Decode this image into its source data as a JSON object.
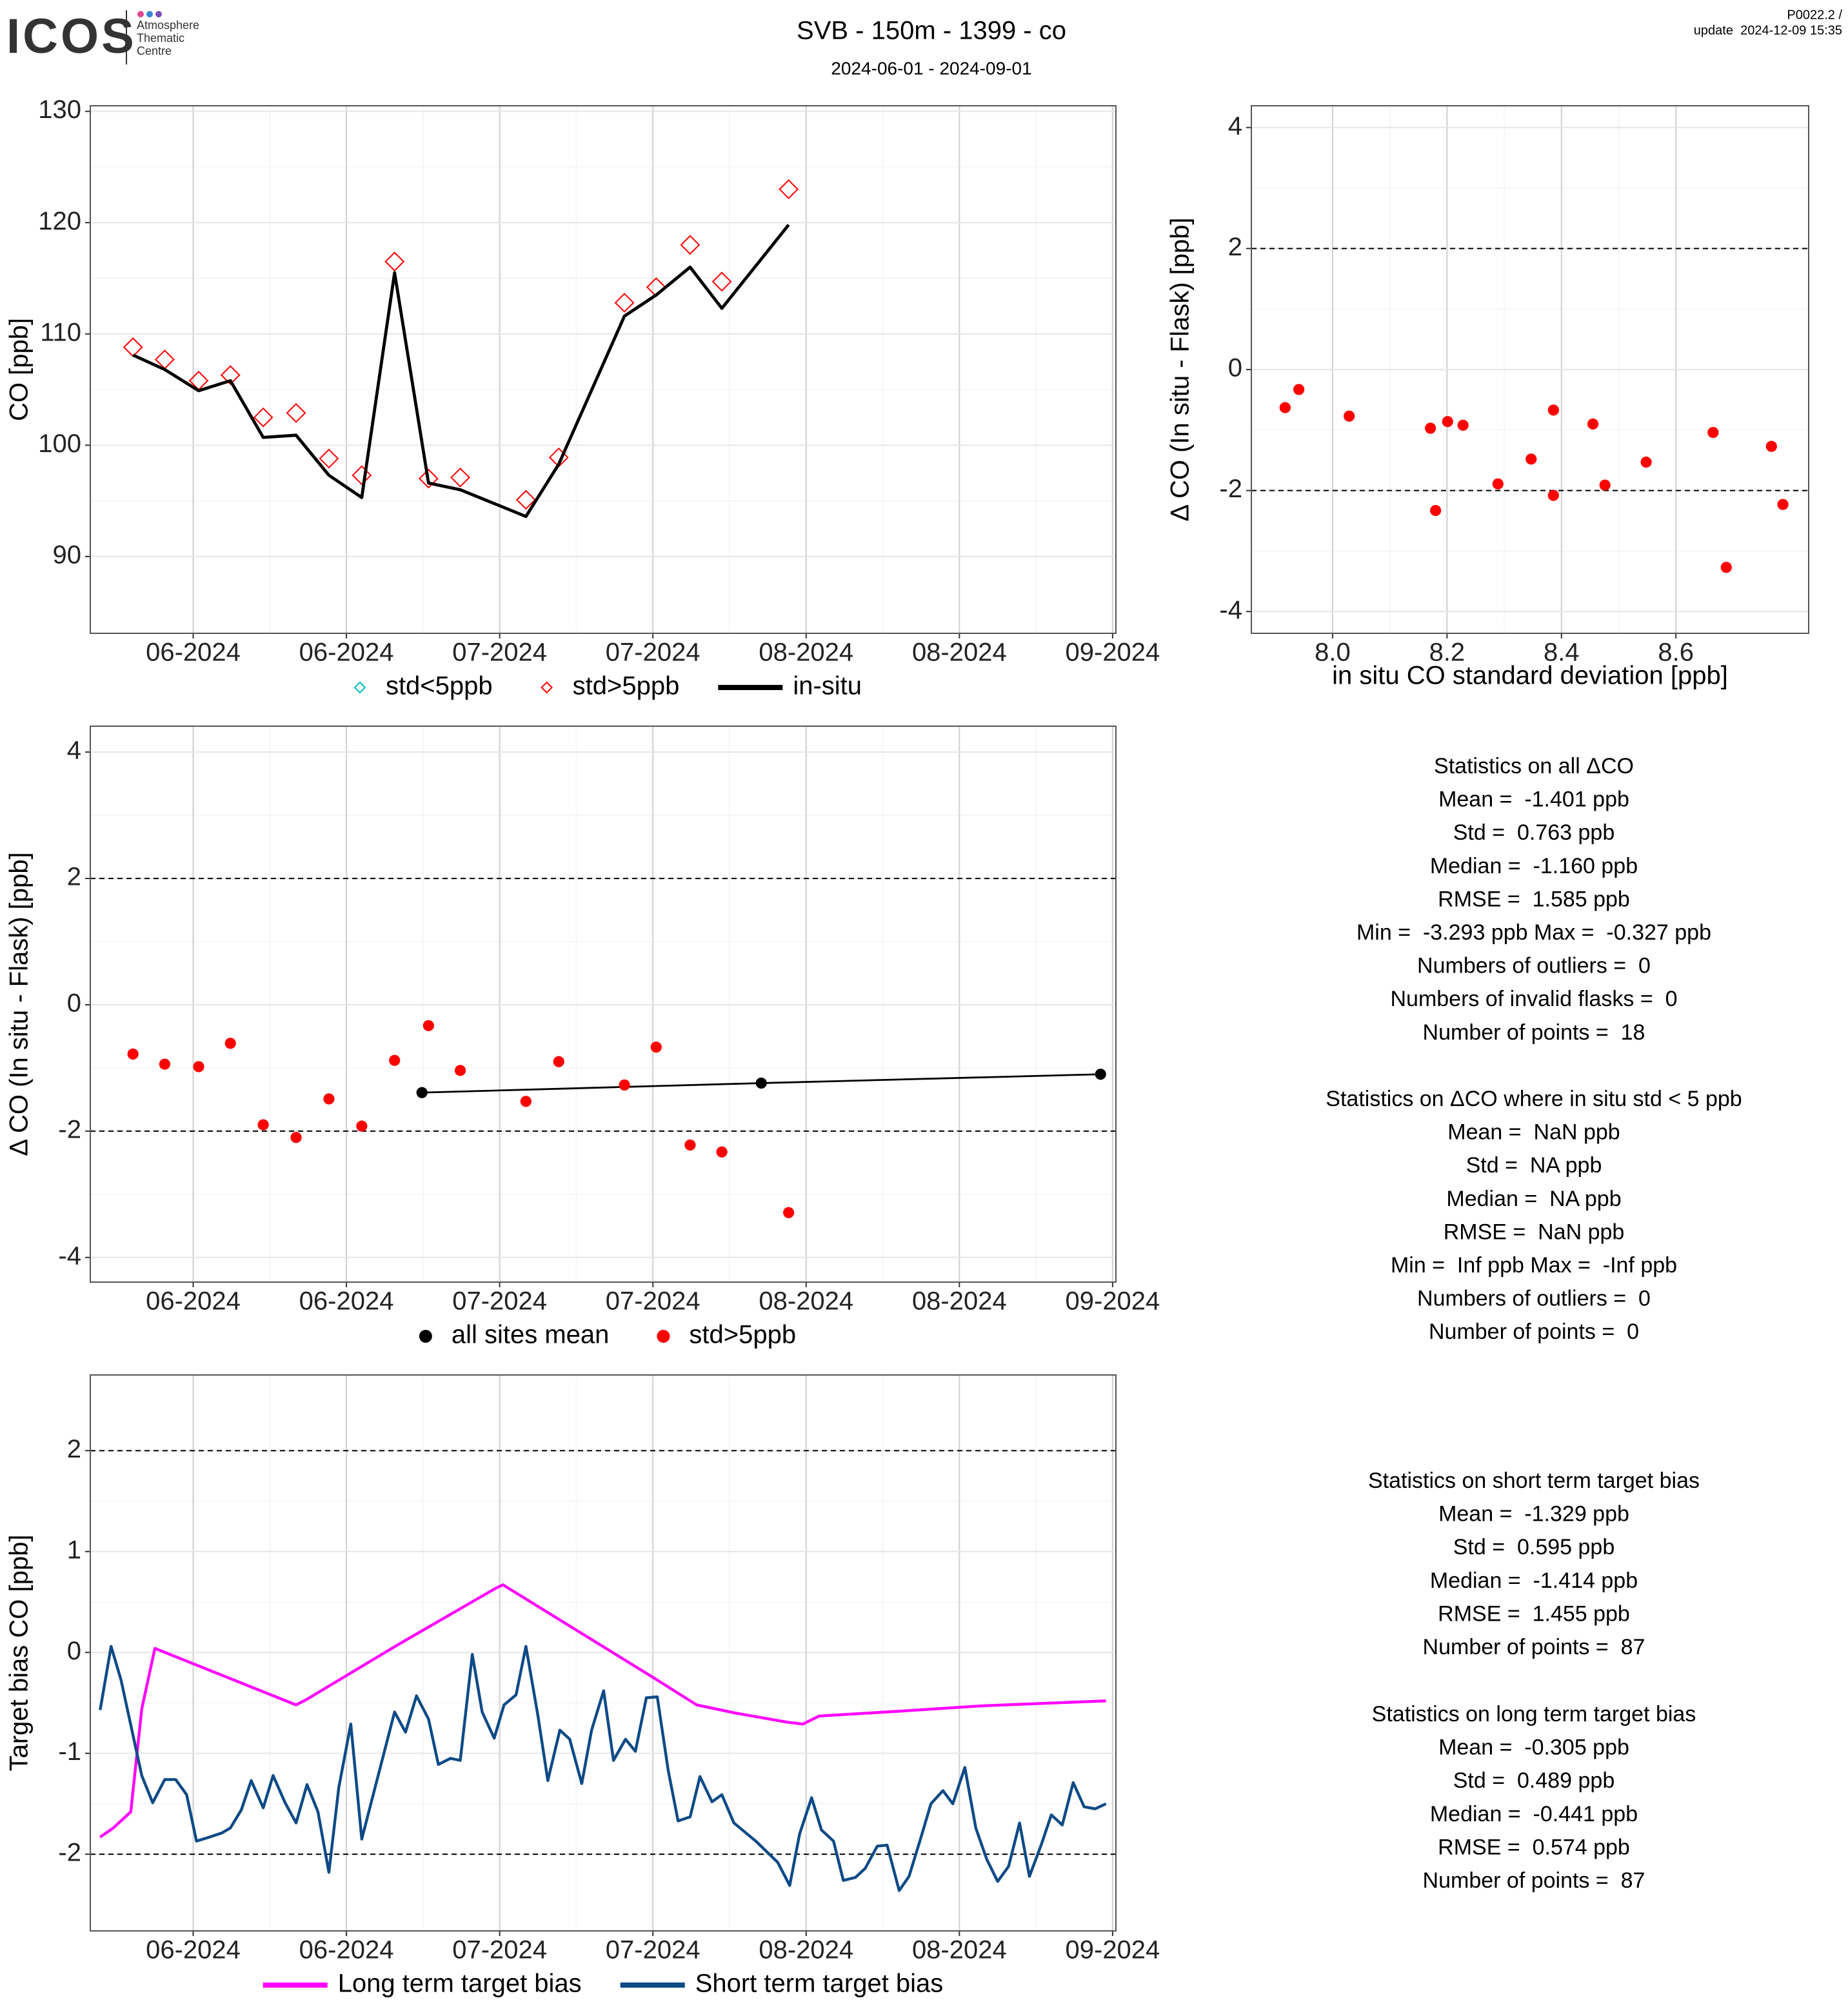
{
  "header": {
    "logo": "ICOS",
    "logo_sub": [
      "Atmosphere",
      "Thematic",
      "Centre"
    ],
    "title": "SVB - 150m - 1399 - co",
    "subtitle": "2024-06-01 - 2024-09-01",
    "version": "P0022.2 /",
    "update": "update  2024-12-09 15:35"
  },
  "chart_data": [
    {
      "type": "line",
      "ylabel": "CO [ppb]",
      "grid": true,
      "legend": "bottom",
      "xlim": [
        -2.4,
        91.3
      ],
      "xticks": [
        {
          "value": 7,
          "label": "06-2024"
        },
        {
          "value": 21,
          "label": "06-2024"
        },
        {
          "value": 35,
          "label": "07-2024"
        },
        {
          "value": 49,
          "label": "07-2024"
        },
        {
          "value": 63,
          "label": "08-2024"
        },
        {
          "value": 77,
          "label": "08-2024"
        },
        {
          "value": 91,
          "label": "09-2024"
        }
      ],
      "ylim": [
        83.1,
        130.5
      ],
      "yticks": [
        90,
        100,
        110,
        120,
        130
      ],
      "series": [
        {
          "name": "std<5ppb",
          "color": "#00bfc4",
          "marker": "diamond",
          "x": [],
          "values": []
        },
        {
          "name": "std>5ppb",
          "color": "#ff0000",
          "marker": "diamond",
          "x": [
            1.5,
            4.4,
            7.5,
            10.4,
            13.4,
            16.4,
            19.4,
            22.4,
            25.4,
            28.5,
            31.4,
            37.4,
            40.4,
            46.4,
            49.3,
            52.4,
            55.3,
            61.4
          ],
          "values": [
            108.8,
            107.7,
            105.8,
            106.3,
            102.5,
            102.9,
            98.8,
            97.3,
            116.5,
            97.0,
            97.1,
            95.1,
            98.9,
            112.8,
            114.2,
            118.0,
            114.7,
            123.0
          ]
        },
        {
          "name": "in-situ",
          "color": "#000000",
          "marker": "line",
          "x": [
            1.5,
            4.4,
            7.5,
            10.4,
            13.4,
            16.4,
            19.4,
            22.4,
            25.4,
            28.5,
            31.4,
            37.4,
            40.4,
            46.4,
            49.3,
            52.4,
            55.3,
            61.4
          ],
          "values": [
            108.1,
            106.8,
            104.9,
            105.8,
            100.7,
            100.9,
            97.3,
            95.3,
            115.5,
            96.6,
            96.0,
            93.6,
            98.3,
            111.6,
            113.5,
            116.0,
            112.3,
            119.8
          ]
        }
      ]
    },
    {
      "type": "scatter",
      "xlabel": "in situ CO standard deviation [ppb]",
      "ylabel": "Δ CO (In situ - Flask) [ppb]",
      "grid": true,
      "xlim": [
        7.858,
        8.832
      ],
      "xticks": [
        {
          "value": 8,
          "label": "8.0"
        },
        8.2,
        8.4,
        8.6
      ],
      "ylim": [
        -4.36,
        4.36
      ],
      "yticks": [
        -4,
        -2,
        0,
        2,
        4
      ],
      "hlines": [
        -2,
        2
      ],
      "series": [
        {
          "color": "#ff0000",
          "x": [
            7.917,
            7.941,
            8.029,
            8.171,
            8.18,
            8.201,
            8.228,
            8.289,
            8.347,
            8.386,
            8.386,
            8.455,
            8.476,
            8.548,
            8.665,
            8.688,
            8.767,
            8.787
          ],
          "values": [
            -0.63,
            -0.33,
            -0.77,
            -0.97,
            -2.33,
            -0.86,
            -0.92,
            -1.89,
            -1.48,
            -0.67,
            -2.08,
            -0.9,
            -1.91,
            -1.53,
            -1.04,
            -3.27,
            -1.27,
            -2.23
          ]
        }
      ]
    },
    {
      "type": "scatter",
      "ylabel": "Δ CO (In situ - Flask) [ppb]",
      "grid": true,
      "legend": "bottom",
      "xlim": [
        -2.4,
        91.3
      ],
      "xticks": [
        {
          "value": 7,
          "label": "06-2024"
        },
        {
          "value": 21,
          "label": "06-2024"
        },
        {
          "value": 35,
          "label": "07-2024"
        },
        {
          "value": 49,
          "label": "07-2024"
        },
        {
          "value": 63,
          "label": "08-2024"
        },
        {
          "value": 77,
          "label": "08-2024"
        },
        {
          "value": 91,
          "label": "09-2024"
        }
      ],
      "ylim": [
        -4.39,
        4.41
      ],
      "yticks": [
        -4,
        -2,
        0,
        2,
        4
      ],
      "hlines": [
        -2,
        2
      ],
      "series": [
        {
          "name": "all sites mean",
          "color": "#000000",
          "connect": true,
          "x": [
            27.9,
            58.9,
            89.9
          ],
          "values": [
            -1.39,
            -1.24,
            -1.1
          ]
        },
        {
          "name": "std>5ppb",
          "color": "#ff0000",
          "x": [
            1.5,
            4.4,
            7.5,
            10.4,
            13.4,
            16.4,
            19.4,
            22.4,
            25.4,
            28.5,
            31.4,
            37.4,
            40.4,
            46.4,
            49.3,
            52.4,
            55.3,
            61.4
          ],
          "values": [
            -0.78,
            -0.94,
            -0.98,
            -0.61,
            -1.9,
            -2.1,
            -1.49,
            -1.92,
            -0.88,
            -0.33,
            -1.04,
            -1.53,
            -0.9,
            -1.27,
            -0.67,
            -2.22,
            -2.33,
            -3.29
          ]
        }
      ]
    },
    {
      "type": "line",
      "ylabel": "Target bias CO [ppb]",
      "grid": true,
      "legend": "bottom",
      "xlim": [
        -2.4,
        91.3
      ],
      "xticks": [
        {
          "value": 7,
          "label": "06-2024"
        },
        {
          "value": 21,
          "label": "06-2024"
        },
        {
          "value": 35,
          "label": "07-2024"
        },
        {
          "value": 49,
          "label": "07-2024"
        },
        {
          "value": 63,
          "label": "08-2024"
        },
        {
          "value": 77,
          "label": "08-2024"
        },
        {
          "value": 91,
          "label": "09-2024"
        }
      ],
      "ylim": [
        -2.76,
        2.75
      ],
      "yticks": [
        -2,
        -1,
        0,
        1,
        2
      ],
      "hlines": [
        -2,
        2
      ],
      "series": [
        {
          "name": "Long term target bias",
          "color": "#ff00ff",
          "marker": "line",
          "x": [
            -1.5,
            -0.3,
            1.3,
            2.3,
            3.5,
            16.4,
            17.3,
            25.3,
            26.4,
            34.7,
            35.3,
            48.9,
            53.0,
            56.5,
            61.2,
            62.7,
            64.2,
            71.9,
            78.9,
            90.4
          ],
          "values": [
            -1.83,
            -1.74,
            -1.58,
            -0.56,
            0.04,
            -0.52,
            -0.47,
            0.05,
            0.12,
            0.64,
            0.67,
            -0.24,
            -0.52,
            -0.6,
            -0.69,
            -0.71,
            -0.63,
            -0.58,
            -0.53,
            -0.48
          ]
        },
        {
          "name": "Short term target bias",
          "color": "#0e4a86",
          "marker": "line",
          "x": [
            -1.5,
            -0.5,
            0.4,
            1.3,
            2.3,
            3.3,
            4.4,
            5.4,
            6.4,
            7.3,
            8.5,
            9.6,
            10.4,
            11.4,
            12.3,
            13.4,
            14.3,
            15.4,
            16.4,
            17.4,
            18.4,
            19.4,
            20.3,
            21.4,
            22.4,
            25.4,
            26.4,
            27.4,
            28.5,
            29.4,
            30.5,
            31.4,
            32.5,
            33.4,
            34.5,
            35.4,
            36.5,
            37.4,
            38.5,
            39.4,
            40.5,
            41.4,
            42.5,
            43.4,
            44.5,
            45.4,
            46.5,
            47.4,
            48.4,
            49.4,
            50.4,
            51.3,
            52.4,
            53.3,
            54.4,
            55.3,
            56.4,
            58.4,
            60.4,
            61.5,
            62.4,
            63.5,
            64.4,
            65.5,
            66.4,
            67.5,
            68.4,
            69.5,
            70.4,
            71.5,
            72.4,
            73.5,
            74.4,
            75.5,
            76.4,
            77.5,
            78.5,
            79.5,
            80.5,
            81.5,
            82.5,
            83.4,
            84.5,
            85.4,
            86.4,
            87.4,
            88.4,
            89.4,
            90.4
          ],
          "values": [
            -0.57,
            0.06,
            -0.27,
            -0.72,
            -1.22,
            -1.49,
            -1.26,
            -1.26,
            -1.41,
            -1.87,
            -1.83,
            -1.79,
            -1.74,
            -1.56,
            -1.27,
            -1.54,
            -1.22,
            -1.49,
            -1.69,
            -1.31,
            -1.58,
            -2.18,
            -1.34,
            -0.71,
            -1.85,
            -0.59,
            -0.79,
            -0.43,
            -0.66,
            -1.11,
            -1.05,
            -1.07,
            -0.02,
            -0.59,
            -0.85,
            -0.52,
            -0.42,
            0.06,
            -0.63,
            -1.27,
            -0.77,
            -0.86,
            -1.3,
            -0.77,
            -0.38,
            -1.07,
            -0.86,
            -0.98,
            -0.45,
            -0.44,
            -1.17,
            -1.67,
            -1.63,
            -1.23,
            -1.48,
            -1.41,
            -1.69,
            -1.87,
            -2.08,
            -2.31,
            -1.8,
            -1.44,
            -1.76,
            -1.87,
            -2.26,
            -2.23,
            -2.14,
            -1.92,
            -1.91,
            -2.36,
            -2.22,
            -1.83,
            -1.5,
            -1.37,
            -1.5,
            -1.14,
            -1.74,
            -2.05,
            -2.27,
            -2.12,
            -1.69,
            -2.22,
            -1.9,
            -1.61,
            -1.71,
            -1.29,
            -1.53,
            -1.55,
            -1.5
          ]
        }
      ]
    }
  ],
  "stats": [
    [
      "Statistics on all ΔCO",
      "Mean =  -1.401 ppb",
      "Std =  0.763 ppb",
      "Median =  -1.160 ppb",
      "RMSE =  1.585 ppb",
      "Min =  -3.293 ppb Max =  -0.327 ppb",
      "Numbers of outliers =  0",
      "Numbers of invalid flasks =  0",
      "Number of points =  18"
    ],
    [
      "Statistics on ΔCO where in situ std < 5 ppb",
      "Mean =  NaN ppb",
      "Std =  NA ppb",
      "Median =  NA ppb",
      "RMSE =  NaN ppb",
      "Min =  Inf ppb Max =  -Inf ppb",
      "Numbers of outliers =  0",
      "Number of points =  0"
    ],
    [
      "Statistics on short term target bias",
      "Mean =  -1.329 ppb",
      "Std =  0.595 ppb",
      "Median =  -1.414 ppb",
      "RMSE =  1.455 ppb",
      "Number of points =  87"
    ],
    [
      "Statistics on long term target bias",
      "Mean =  -0.305 ppb",
      "Std =  0.489 ppb",
      "Median =  -0.441 ppb",
      "RMSE =  0.574 ppb",
      "Number of points =  87"
    ]
  ]
}
